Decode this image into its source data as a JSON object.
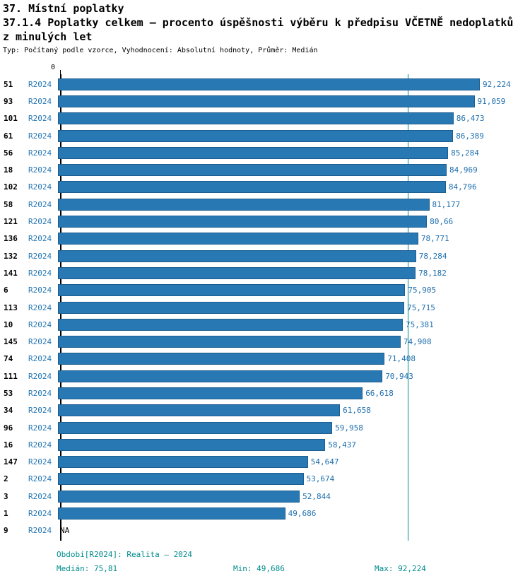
{
  "header": {
    "title_line1": "37. Místní poplatky",
    "title_line2": "37.1.4 Poplatky celkem – procento úspěšnosti výběru k předpisu VČETNĚ nedoplatků",
    "title_line3": "z minulých let",
    "subtitle": "Typ: Počítaný podle vzorce, Vyhodnocení: Absolutní hodnoty, Průměr: Medián"
  },
  "chart_data": {
    "type": "bar",
    "orientation": "horizontal",
    "title": "37.1.4 Poplatky celkem – procento úspěšnosti výběru k předpisu VČETNĚ nedoplatků z minulých let",
    "axis_zero_label": "0",
    "xlim": [
      0,
      102.6
    ],
    "grid": false,
    "median": 75.81,
    "median_label": "75,81",
    "rows": [
      {
        "id": "51",
        "period": "R2024",
        "value": 92.224,
        "label": "92,224"
      },
      {
        "id": "93",
        "period": "R2024",
        "value": 91.059,
        "label": "91,059"
      },
      {
        "id": "101",
        "period": "R2024",
        "value": 86.473,
        "label": "86,473"
      },
      {
        "id": "61",
        "period": "R2024",
        "value": 86.389,
        "label": "86,389"
      },
      {
        "id": "56",
        "period": "R2024",
        "value": 85.284,
        "label": "85,284"
      },
      {
        "id": "18",
        "period": "R2024",
        "value": 84.969,
        "label": "84,969"
      },
      {
        "id": "102",
        "period": "R2024",
        "value": 84.796,
        "label": "84,796"
      },
      {
        "id": "58",
        "period": "R2024",
        "value": 81.177,
        "label": "81,177"
      },
      {
        "id": "121",
        "period": "R2024",
        "value": 80.66,
        "label": "80,66"
      },
      {
        "id": "136",
        "period": "R2024",
        "value": 78.771,
        "label": "78,771"
      },
      {
        "id": "132",
        "period": "R2024",
        "value": 78.284,
        "label": "78,284"
      },
      {
        "id": "141",
        "period": "R2024",
        "value": 78.182,
        "label": "78,182"
      },
      {
        "id": "6",
        "period": "R2024",
        "value": 75.905,
        "label": "75,905"
      },
      {
        "id": "113",
        "period": "R2024",
        "value": 75.715,
        "label": "75,715"
      },
      {
        "id": "10",
        "period": "R2024",
        "value": 75.381,
        "label": "75,381"
      },
      {
        "id": "145",
        "period": "R2024",
        "value": 74.908,
        "label": "74,908"
      },
      {
        "id": "74",
        "period": "R2024",
        "value": 71.408,
        "label": "71,408"
      },
      {
        "id": "111",
        "period": "R2024",
        "value": 70.943,
        "label": "70,943"
      },
      {
        "id": "53",
        "period": "R2024",
        "value": 66.618,
        "label": "66,618"
      },
      {
        "id": "34",
        "period": "R2024",
        "value": 61.658,
        "label": "61,658"
      },
      {
        "id": "96",
        "period": "R2024",
        "value": 59.958,
        "label": "59,958"
      },
      {
        "id": "16",
        "period": "R2024",
        "value": 58.437,
        "label": "58,437"
      },
      {
        "id": "147",
        "period": "R2024",
        "value": 54.647,
        "label": "54,647"
      },
      {
        "id": "2",
        "period": "R2024",
        "value": 53.674,
        "label": "53,674"
      },
      {
        "id": "3",
        "period": "R2024",
        "value": 52.844,
        "label": "52,844"
      },
      {
        "id": "1",
        "period": "R2024",
        "value": 49.686,
        "label": "49,686"
      },
      {
        "id": "9",
        "period": "R2024",
        "value": null,
        "label": "NA"
      }
    ],
    "colors": {
      "bar": "#2878b4",
      "bar_border": "#1c5d8f",
      "value_text": "#1f6fae",
      "period_text": "#2878b4",
      "median_line": "#008b8b",
      "footer_text": "#008b8b",
      "axis": "#000000"
    }
  },
  "footer": {
    "period_info": "Období[R2024]: Realita – 2024",
    "median": "Medián: 75,81",
    "min": "Min: 49,686",
    "max": "Max: 92,224"
  }
}
